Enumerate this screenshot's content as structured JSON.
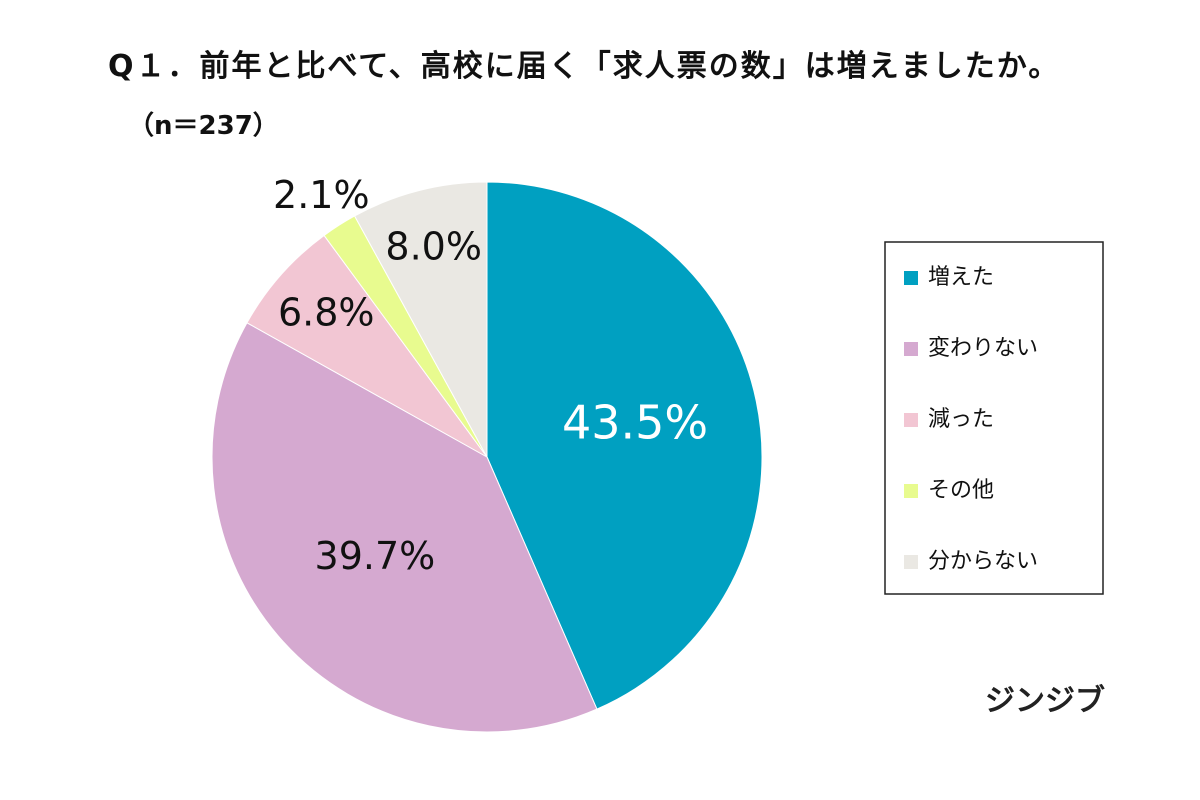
{
  "chart_data": {
    "type": "pie",
    "title": "Q１．前年と比べて、高校に届く「求人票の数」は増えましたか。",
    "subtitle": "（n＝237）",
    "categories": [
      "増えた",
      "変わりない",
      "減った",
      "その他",
      "分からない"
    ],
    "values": [
      43.5,
      39.7,
      6.8,
      2.1,
      8.0
    ],
    "value_labels": [
      "43.5%",
      "39.7%",
      "6.8%",
      "2.1%",
      "8.0%"
    ],
    "colors": [
      "#00a0c1",
      "#d5a9d0",
      "#f2c6d3",
      "#e8fb8f",
      "#eae8e3"
    ],
    "legend": "right",
    "source": "ジンジブ"
  }
}
